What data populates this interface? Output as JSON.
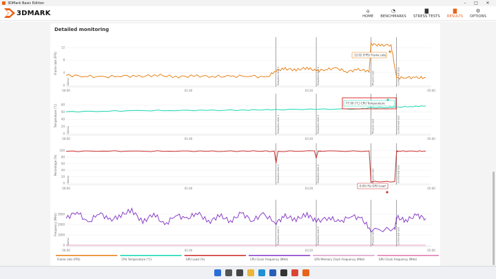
{
  "window": {
    "title": "3DMark Basic Edition",
    "minimize": "–",
    "maximize": "□",
    "close": "✕"
  },
  "brand": {
    "logo_text": "3DMARK",
    "accent": "#e8621a"
  },
  "nav": [
    {
      "label": "HOME",
      "icon": "home-icon",
      "glyph": "⌂",
      "active": false
    },
    {
      "label": "BENCHMARKS",
      "icon": "gauge-icon",
      "glyph": "◔",
      "active": false
    },
    {
      "label": "STRESS TESTS",
      "icon": "bars-icon",
      "glyph": "▇",
      "active": false
    },
    {
      "label": "RESULTS",
      "icon": "results-chart-icon",
      "glyph": "▇",
      "active": true
    },
    {
      "label": "OPTIONS",
      "icon": "gear-icon",
      "glyph": "⚙",
      "active": false
    }
  ],
  "panel": {
    "title": "Detailed monitoring"
  },
  "chart_data": [
    {
      "type": "line",
      "ylabel": "Frame rate (FPS)",
      "ylim": [
        0,
        14
      ],
      "yticks": [
        0,
        4,
        8,
        12
      ],
      "xticks": [
        "00:00",
        "01:40",
        "03:20",
        "05:00"
      ],
      "color": "#e8821a",
      "events": [
        {
          "label": "Demo",
          "x": 0.0
        },
        {
          "label": "Graphics test 1",
          "x": 0.575
        },
        {
          "label": "Graphics test 2",
          "x": 0.685
        },
        {
          "label": "Physics test",
          "x": 0.835
        },
        {
          "label": "Combined test",
          "x": 0.905
        }
      ],
      "series": [
        {
          "name": "Frame rate (FPS)",
          "x": [
            0.0,
            0.05,
            0.1,
            0.15,
            0.2,
            0.25,
            0.3,
            0.35,
            0.4,
            0.45,
            0.5,
            0.55,
            0.575,
            0.6,
            0.63,
            0.66,
            0.685,
            0.71,
            0.74,
            0.77,
            0.8,
            0.83,
            0.835,
            0.86,
            0.89,
            0.905,
            0.93,
            0.96,
            0.985
          ],
          "values": [
            3.2,
            3.0,
            2.6,
            3.1,
            2.8,
            3.3,
            2.7,
            3.0,
            2.9,
            2.8,
            3.1,
            2.5,
            4.8,
            5.3,
            4.9,
            5.6,
            4.6,
            5.1,
            5.4,
            4.4,
            5.0,
            4.6,
            13.2,
            12.7,
            12.9,
            2.3,
            2.6,
            2.4,
            2.5
          ]
        }
      ],
      "tooltip": "13.02 (FPS) Frame rate"
    },
    {
      "type": "line",
      "ylabel": "Temperature (°C)",
      "ylim": [
        0,
        100
      ],
      "yticks": [
        0,
        20,
        40,
        60,
        80
      ],
      "xticks": [
        "00:00",
        "01:40",
        "03:20",
        "05:00"
      ],
      "color": "#19d9b0",
      "events": [
        {
          "label": "Demo",
          "x": 0.0
        },
        {
          "label": "Graphics test 1",
          "x": 0.575
        },
        {
          "label": "Graphics test 2",
          "x": 0.685
        },
        {
          "label": "Physics test",
          "x": 0.835
        },
        {
          "label": "Combined test",
          "x": 0.905
        }
      ],
      "series": [
        {
          "name": "CPU Temperature (°C)",
          "x": [
            0.0,
            0.1,
            0.2,
            0.3,
            0.4,
            0.5,
            0.575,
            0.685,
            0.8,
            0.835,
            0.88,
            0.905,
            0.95,
            0.985
          ],
          "values": [
            61,
            63,
            64,
            65,
            65,
            66,
            67,
            68,
            69,
            72,
            73,
            74,
            76,
            77
          ]
        }
      ],
      "tooltip": "77.00 (°C) CPU Temperature"
    },
    {
      "type": "line",
      "ylabel": "Percentage (%)",
      "ylim": [
        0,
        110
      ],
      "yticks": [
        0,
        20,
        40,
        60,
        80,
        100
      ],
      "xticks": [
        "00:00",
        "01:40",
        "03:20",
        "05:00"
      ],
      "color": "#cc2f2f",
      "events": [
        {
          "label": "Demo",
          "x": 0.0
        },
        {
          "label": "Graphics test 1",
          "x": 0.575
        },
        {
          "label": "Graphics test 2",
          "x": 0.685
        },
        {
          "label": "Physics test",
          "x": 0.835
        },
        {
          "label": "Combined test",
          "x": 0.905
        }
      ],
      "series": [
        {
          "name": "GPU Load (%)",
          "x": [
            0.0,
            0.1,
            0.2,
            0.3,
            0.4,
            0.5,
            0.57,
            0.575,
            0.58,
            0.68,
            0.685,
            0.69,
            0.7,
            0.83,
            0.835,
            0.9,
            0.905,
            0.91,
            0.95,
            0.985
          ],
          "values": [
            98,
            99,
            98,
            99,
            98,
            99,
            98,
            62,
            98,
            99,
            78,
            98,
            99,
            98,
            5,
            5,
            98,
            99,
            98,
            99
          ]
        }
      ],
      "tooltip": "6.00 (%) GPU Load"
    },
    {
      "type": "line",
      "ylabel": "Frequency (MHz)",
      "ylim": [
        0,
        4000
      ],
      "yticks": [
        0,
        1000,
        2000,
        3000
      ],
      "xticks": [
        "00:00",
        "01:40",
        "03:20",
        "05:00"
      ],
      "color": "#8a3fc9",
      "events": [
        {
          "label": "Demo",
          "x": 0.0
        },
        {
          "label": "Graphics test 1",
          "x": 0.575
        },
        {
          "label": "Graphics test 2",
          "x": 0.685
        },
        {
          "label": "Physics test",
          "x": 0.835
        },
        {
          "label": "Combined test",
          "x": 0.905
        }
      ],
      "series": [
        {
          "name": "CPU Clock Frequency (MHz)",
          "x": [
            0.0,
            0.03,
            0.06,
            0.09,
            0.12,
            0.15,
            0.18,
            0.21,
            0.24,
            0.27,
            0.3,
            0.33,
            0.36,
            0.39,
            0.42,
            0.45,
            0.48,
            0.51,
            0.54,
            0.575,
            0.6,
            0.63,
            0.66,
            0.685,
            0.72,
            0.75,
            0.78,
            0.81,
            0.835,
            0.9,
            0.905,
            0.93,
            0.96,
            0.985
          ],
          "values": [
            2600,
            3300,
            2100,
            3200,
            2400,
            2900,
            3400,
            2200,
            3100,
            1900,
            3000,
            2500,
            3200,
            2200,
            2900,
            2300,
            3100,
            2400,
            3000,
            2200,
            2800,
            2500,
            3000,
            2300,
            2700,
            2200,
            2900,
            2500,
            1500,
            1500,
            2700,
            2400,
            2900,
            2600
          ]
        },
        {
          "name": "GPU Clock Frequency (MHz)",
          "x": [
            0.0,
            0.985
          ],
          "values": [
            0,
            0
          ]
        }
      ]
    }
  ],
  "legend": [
    {
      "label": "Frame rate (FPS)",
      "color": "#e8821a"
    },
    {
      "label": "CPU Temperature (°C)",
      "color": "#19d9b0"
    },
    {
      "label": "GPU Load (%)",
      "color": "#cc2f2f"
    },
    {
      "label": "CPU Clock Frequency (MHz)",
      "color": "#8a3fc9"
    },
    {
      "label": "GPU Memory Clock Frequency (MHz)",
      "color": "#d9a0c8"
    },
    {
      "label": "GPU Clock Frequency (MHz)",
      "color": "#e37bb0"
    }
  ],
  "taskbar": [
    {
      "icon": "windows-start-icon",
      "color": "#2a6fd6"
    },
    {
      "icon": "search-icon",
      "color": "#555555"
    },
    {
      "icon": "task-view-icon",
      "color": "#444444"
    },
    {
      "icon": "file-explorer-icon",
      "color": "#e9b53a"
    },
    {
      "icon": "edge-browser-icon",
      "color": "#1f8fd6"
    },
    {
      "icon": "store-icon",
      "color": "#2b5db8"
    },
    {
      "icon": "camera-icon",
      "color": "#333333"
    },
    {
      "icon": "chrome-browser-icon",
      "color": "#db4437"
    },
    {
      "icon": "3dmark-app-icon",
      "color": "#e8621a"
    }
  ]
}
